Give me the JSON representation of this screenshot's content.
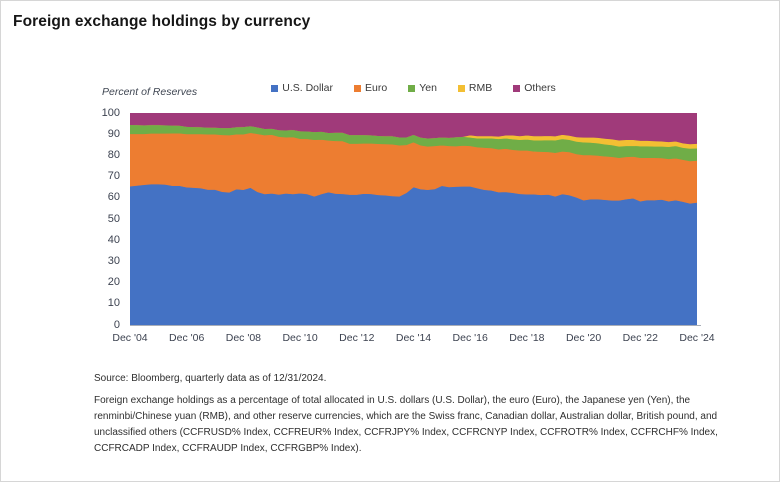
{
  "title": "Foreign exchange holdings by currency",
  "chart_data": {
    "type": "area",
    "stacked": true,
    "title": "Foreign exchange holdings by currency",
    "ylabel": "Percent of Reserves",
    "ylim": [
      0,
      100
    ],
    "y_ticks": [
      0,
      10,
      20,
      30,
      40,
      50,
      60,
      70,
      80,
      90,
      100
    ],
    "x_frequency": "quarterly",
    "x_range": [
      "Dec '04",
      "Dec '24"
    ],
    "x_tick_labels": [
      "Dec '04",
      "Dec '06",
      "Dec '08",
      "Dec '10",
      "Dec '12",
      "Dec '14",
      "Dec '16",
      "Dec '18",
      "Dec '20",
      "Dec '22",
      "Dec '24"
    ],
    "legend_position": "top",
    "grid": false,
    "series": [
      {
        "name": "U.S. Dollar",
        "color": "#4472C4",
        "values": [
          65.5,
          65.8,
          66.2,
          66.5,
          66.5,
          66.3,
          65.7,
          65.7,
          65.0,
          64.8,
          64.6,
          63.9,
          63.9,
          62.9,
          62.6,
          64.1,
          63.8,
          64.8,
          62.8,
          61.8,
          62.1,
          61.6,
          62.1,
          61.8,
          62.2,
          61.8,
          60.7,
          61.8,
          62.7,
          62.0,
          61.9,
          61.5,
          61.5,
          62.0,
          61.9,
          61.4,
          61.2,
          60.9,
          60.7,
          62.4,
          65.1,
          64.1,
          63.8,
          64.2,
          65.7,
          65.1,
          65.3,
          65.4,
          65.4,
          64.6,
          63.8,
          63.5,
          62.7,
          62.8,
          62.4,
          61.9,
          61.7,
          61.7,
          61.4,
          61.6,
          60.7,
          61.8,
          61.3,
          60.2,
          58.9,
          59.4,
          59.4,
          59.1,
          58.8,
          58.8,
          59.4,
          59.8,
          58.4,
          59.0,
          58.9,
          59.2,
          58.4,
          58.9,
          58.2,
          57.4,
          57.8
        ]
      },
      {
        "name": "Euro",
        "color": "#ED7D31",
        "values": [
          24.7,
          24.4,
          24.0,
          23.9,
          23.9,
          24.1,
          24.8,
          24.8,
          25.1,
          25.3,
          25.5,
          26.1,
          26.1,
          26.8,
          27.0,
          25.9,
          26.2,
          25.9,
          27.4,
          27.8,
          27.7,
          27.3,
          26.5,
          26.9,
          25.7,
          26.0,
          26.7,
          25.7,
          24.4,
          24.9,
          24.9,
          24.1,
          24.1,
          23.7,
          23.8,
          24.1,
          24.2,
          24.4,
          24.1,
          22.6,
          21.2,
          20.7,
          20.5,
          20.3,
          19.1,
          19.4,
          19.1,
          19.3,
          19.1,
          19.3,
          19.9,
          20.0,
          20.2,
          20.4,
          20.3,
          20.5,
          20.7,
          20.2,
          20.4,
          20.1,
          20.6,
          20.1,
          20.3,
          20.5,
          21.3,
          20.8,
          20.6,
          20.5,
          20.6,
          20.1,
          19.9,
          19.7,
          20.5,
          19.9,
          20.0,
          19.6,
          20.0,
          19.8,
          19.8,
          20.0,
          19.8
        ]
      },
      {
        "name": "Yen",
        "color": "#70AD47",
        "values": [
          4.3,
          4.2,
          4.1,
          4.0,
          4.0,
          3.9,
          3.7,
          3.6,
          3.5,
          3.4,
          3.3,
          3.2,
          3.2,
          3.3,
          3.4,
          3.4,
          3.5,
          3.2,
          3.1,
          3.0,
          2.9,
          3.1,
          3.3,
          3.4,
          3.6,
          3.6,
          3.7,
          3.8,
          3.6,
          3.9,
          4.0,
          4.1,
          4.1,
          4.0,
          3.9,
          3.8,
          3.8,
          3.9,
          3.8,
          3.6,
          3.5,
          3.7,
          3.8,
          3.8,
          3.8,
          3.9,
          4.3,
          4.2,
          4.0,
          4.2,
          4.4,
          4.6,
          4.9,
          4.9,
          5.0,
          5.0,
          5.2,
          5.3,
          5.4,
          5.6,
          5.9,
          5.9,
          5.8,
          5.9,
          6.0,
          5.9,
          5.8,
          5.7,
          5.5,
          5.4,
          5.2,
          5.1,
          5.5,
          5.5,
          5.4,
          5.5,
          5.7,
          5.8,
          5.7,
          5.9,
          5.8
        ]
      },
      {
        "name": "RMB",
        "color": "#F3BF33",
        "start_index": 48,
        "values": [
          1.1,
          1.1,
          1.1,
          1.1,
          1.2,
          1.4,
          1.8,
          1.8,
          1.9,
          2.0,
          2.0,
          2.0,
          1.9,
          2.0,
          2.0,
          2.1,
          2.3,
          2.5,
          2.6,
          2.7,
          2.8,
          2.9,
          2.9,
          2.8,
          2.6,
          2.6,
          2.5,
          2.4,
          2.3,
          2.2,
          2.1,
          2.1,
          2.2
        ]
      },
      {
        "name": "Others",
        "color": "#A03A7A",
        "remainder": true
      }
    ],
    "source": "Source: Bloomberg, quarterly data as of 12/31/2024.",
    "footnote": "Foreign exchange holdings as a percentage of total allocated in U.S. dollars (U.S. Dollar), the euro (Euro), the Japanese yen (Yen), the renminbi/Chinese yuan (RMB), and other reserve currencies, which are the Swiss franc, Canadian dollar, Australian dollar, British pound, and unclassified others (CCFRUSD% Index, CCFREUR% Index, CCFRJPY% Index, CCFRCNYP Index, CCFROTR% Index, CCFRCHF% Index, CCFRCADP Index, CCFRAUDP Index, CCFRGBP% Index)."
  }
}
